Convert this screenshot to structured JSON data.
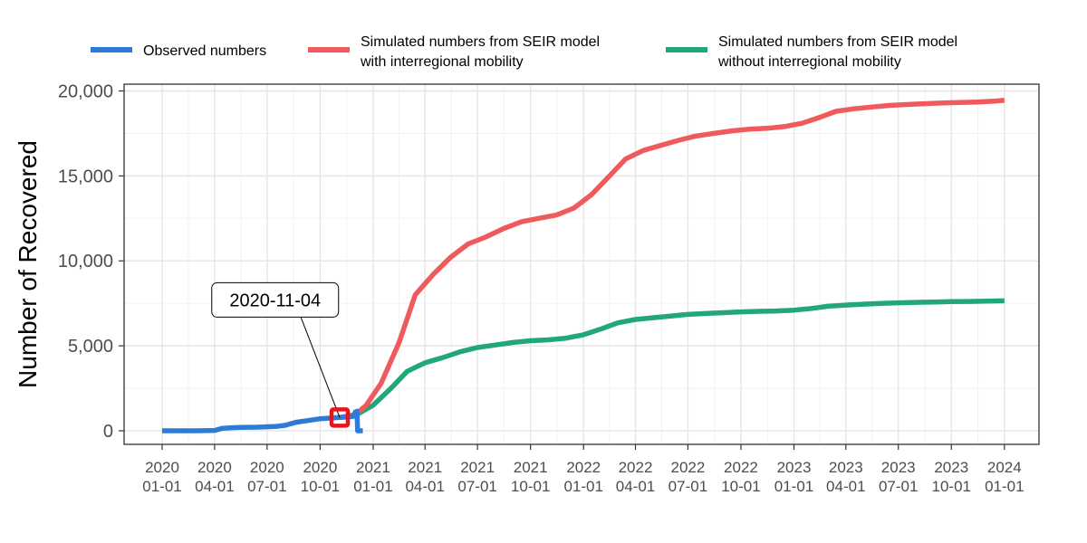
{
  "chart_data": {
    "type": "line",
    "title": "",
    "xlabel": "",
    "ylabel": "Number of Recovered",
    "x_range": [
      "2019-10-27",
      "2024-03-01"
    ],
    "ylim": [
      -800,
      20400
    ],
    "y_ticks": [
      0,
      5000,
      10000,
      15000,
      20000
    ],
    "y_tick_labels": [
      "0",
      "5,000",
      "10,000",
      "15,000",
      "20,000"
    ],
    "x_ticks": [
      "2020-01-01",
      "2020-04-01",
      "2020-07-01",
      "2020-10-01",
      "2021-01-01",
      "2021-04-01",
      "2021-07-01",
      "2021-10-01",
      "2022-01-01",
      "2022-04-01",
      "2022-07-01",
      "2022-10-01",
      "2023-01-01",
      "2023-04-01",
      "2023-07-01",
      "2023-10-01",
      "2024-01-01"
    ],
    "x_tick_labels": [
      [
        "2020",
        "01-01"
      ],
      [
        "2020",
        "04-01"
      ],
      [
        "2020",
        "07-01"
      ],
      [
        "2020",
        "10-01"
      ],
      [
        "2021",
        "01-01"
      ],
      [
        "2021",
        "04-01"
      ],
      [
        "2021",
        "07-01"
      ],
      [
        "2021",
        "10-01"
      ],
      [
        "2022",
        "01-01"
      ],
      [
        "2022",
        "04-01"
      ],
      [
        "2022",
        "07-01"
      ],
      [
        "2022",
        "10-01"
      ],
      [
        "2023",
        "01-01"
      ],
      [
        "2023",
        "04-01"
      ],
      [
        "2023",
        "07-01"
      ],
      [
        "2023",
        "10-01"
      ],
      [
        "2024",
        "01-01"
      ]
    ],
    "grid": true,
    "legend_position": "top",
    "series": [
      {
        "name": "Observed numbers",
        "color": "#2e7bd6",
        "points": [
          [
            "2020-01-01",
            0
          ],
          [
            "2020-02-01",
            0
          ],
          [
            "2020-03-01",
            0
          ],
          [
            "2020-04-01",
            20
          ],
          [
            "2020-04-15",
            150
          ],
          [
            "2020-05-15",
            200
          ],
          [
            "2020-06-15",
            210
          ],
          [
            "2020-07-15",
            250
          ],
          [
            "2020-08-01",
            320
          ],
          [
            "2020-08-20",
            500
          ],
          [
            "2020-09-10",
            600
          ],
          [
            "2020-09-30",
            700
          ],
          [
            "2020-10-20",
            750
          ],
          [
            "2020-11-04",
            780
          ],
          [
            "2020-11-20",
            820
          ],
          [
            "2020-11-28",
            850
          ],
          [
            "2020-12-01",
            1100
          ],
          [
            "2020-12-04",
            1150
          ],
          [
            "2020-12-05",
            0
          ],
          [
            "2020-12-14",
            0
          ]
        ]
      },
      {
        "name": "Simulated numbers from SEIR model with interregional mobility",
        "legend_lines": [
          "Simulated numbers from SEIR model",
          "with interregional mobility"
        ],
        "color": "#ef5a5d",
        "points": [
          [
            "2020-11-04",
            780
          ],
          [
            "2020-12-01",
            950
          ],
          [
            "2020-12-20",
            1500
          ],
          [
            "2021-01-15",
            2800
          ],
          [
            "2021-02-15",
            5200
          ],
          [
            "2021-03-15",
            8000
          ],
          [
            "2021-04-15",
            9200
          ],
          [
            "2021-05-15",
            10200
          ],
          [
            "2021-06-15",
            11000
          ],
          [
            "2021-07-15",
            11400
          ],
          [
            "2021-08-15",
            11900
          ],
          [
            "2021-09-15",
            12300
          ],
          [
            "2021-10-15",
            12500
          ],
          [
            "2021-11-15",
            12700
          ],
          [
            "2021-12-15",
            13100
          ],
          [
            "2022-01-15",
            13900
          ],
          [
            "2022-02-15",
            15000
          ],
          [
            "2022-03-15",
            16000
          ],
          [
            "2022-04-15",
            16500
          ],
          [
            "2022-05-15",
            16800
          ],
          [
            "2022-06-15",
            17100
          ],
          [
            "2022-07-15",
            17350
          ],
          [
            "2022-08-15",
            17500
          ],
          [
            "2022-09-15",
            17650
          ],
          [
            "2022-10-15",
            17750
          ],
          [
            "2022-11-15",
            17800
          ],
          [
            "2022-12-15",
            17900
          ],
          [
            "2023-01-15",
            18100
          ],
          [
            "2023-02-15",
            18450
          ],
          [
            "2023-03-15",
            18800
          ],
          [
            "2023-04-15",
            18950
          ],
          [
            "2023-05-15",
            19050
          ],
          [
            "2023-06-15",
            19150
          ],
          [
            "2023-07-15",
            19200
          ],
          [
            "2023-08-15",
            19250
          ],
          [
            "2023-09-15",
            19300
          ],
          [
            "2023-10-15",
            19320
          ],
          [
            "2023-11-15",
            19350
          ],
          [
            "2023-12-15",
            19400
          ],
          [
            "2024-01-01",
            19450
          ]
        ]
      },
      {
        "name": "Simulated numbers from SEIR model without interregional mobility",
        "legend_lines": [
          "Simulated numbers from SEIR model",
          "without interregional mobility"
        ],
        "color": "#21a77a",
        "points": [
          [
            "2020-11-04",
            780
          ],
          [
            "2020-12-01",
            900
          ],
          [
            "2021-01-01",
            1500
          ],
          [
            "2021-02-01",
            2500
          ],
          [
            "2021-03-01",
            3500
          ],
          [
            "2021-04-01",
            4000
          ],
          [
            "2021-05-01",
            4300
          ],
          [
            "2021-06-01",
            4650
          ],
          [
            "2021-07-01",
            4900
          ],
          [
            "2021-08-01",
            5050
          ],
          [
            "2021-09-01",
            5200
          ],
          [
            "2021-10-01",
            5300
          ],
          [
            "2021-11-01",
            5350
          ],
          [
            "2021-12-01",
            5450
          ],
          [
            "2022-01-01",
            5650
          ],
          [
            "2022-02-01",
            6000
          ],
          [
            "2022-03-01",
            6350
          ],
          [
            "2022-04-01",
            6550
          ],
          [
            "2022-05-01",
            6650
          ],
          [
            "2022-06-01",
            6750
          ],
          [
            "2022-07-01",
            6850
          ],
          [
            "2022-08-01",
            6900
          ],
          [
            "2022-09-01",
            6950
          ],
          [
            "2022-10-01",
            7000
          ],
          [
            "2022-11-01",
            7030
          ],
          [
            "2022-12-01",
            7050
          ],
          [
            "2023-01-01",
            7100
          ],
          [
            "2023-02-01",
            7200
          ],
          [
            "2023-03-01",
            7330
          ],
          [
            "2023-04-01",
            7400
          ],
          [
            "2023-05-01",
            7450
          ],
          [
            "2023-06-01",
            7500
          ],
          [
            "2023-07-01",
            7530
          ],
          [
            "2023-08-01",
            7560
          ],
          [
            "2023-09-01",
            7580
          ],
          [
            "2023-10-01",
            7600
          ],
          [
            "2023-11-01",
            7610
          ],
          [
            "2023-12-01",
            7630
          ],
          [
            "2024-01-01",
            7650
          ]
        ]
      }
    ],
    "annotation": {
      "label": "2020-11-04",
      "date": "2020-11-04",
      "value": 780,
      "marker_color": "#e8141c",
      "label_anchor_date": "2020-07-15",
      "label_anchor_value": 7700
    }
  }
}
